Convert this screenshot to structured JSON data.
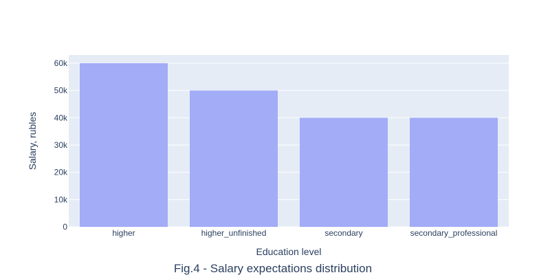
{
  "chart_data": {
    "type": "bar",
    "categories": [
      "higher",
      "higher_unfinished",
      "secondary",
      "secondary_professional"
    ],
    "values": [
      60000,
      50000,
      40000,
      40000
    ],
    "xlabel": "Education level",
    "ylabel": "Salary, rubles",
    "ylim": [
      0,
      63000
    ],
    "yticks": [
      0,
      10000,
      20000,
      30000,
      40000,
      50000,
      60000
    ],
    "ytick_labels": [
      "0",
      "10k",
      "20k",
      "30k",
      "40k",
      "50k",
      "60k"
    ],
    "grid": true,
    "colors": {
      "bar": "#a3acf7",
      "plot_bg": "#e5ecf6",
      "grid": "#ffffff",
      "text": "#2a3f5f"
    }
  },
  "caption": "Fig.4 - Salary expectations distribution"
}
